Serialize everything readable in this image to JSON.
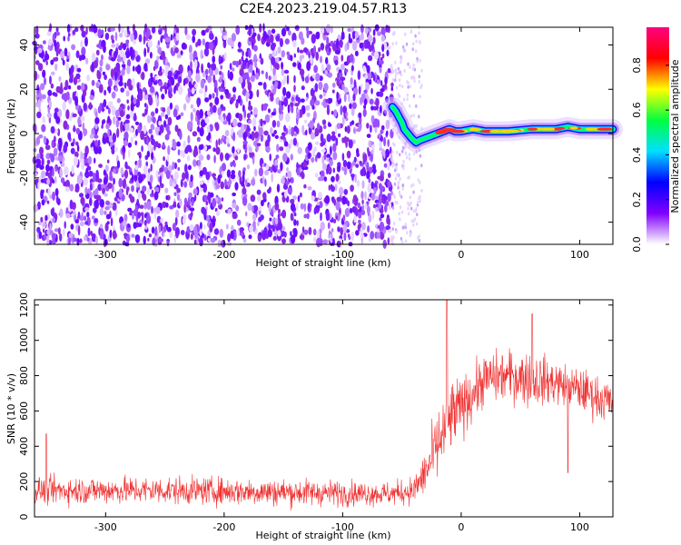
{
  "title": "C2E4.2023.219.04.57.R13",
  "chart_data": [
    {
      "type": "heatmap",
      "ylabel": "Frequency (Hz)",
      "xlabel": "Height of straight line (km)",
      "xlim": [
        -360,
        128
      ],
      "ylim": [
        -50,
        48
      ],
      "x_ticks": [
        -300,
        -200,
        -100,
        0,
        100
      ],
      "y_ticks": [
        -40,
        -20,
        0,
        20,
        40
      ],
      "colorbar": {
        "label": "Normalized spectral amplitude",
        "range": [
          0,
          0.97
        ],
        "ticks": [
          0.0,
          0.2,
          0.4,
          0.6,
          0.8
        ],
        "colormap": [
          "#ffffff",
          "#8000ff",
          "#0000ff",
          "#00e0ff",
          "#00ff40",
          "#ffff00",
          "#ff0000",
          "#ff0080"
        ]
      },
      "noise_region_x": [
        -360,
        -58
      ],
      "sparse_region_x": [
        -58,
        -33
      ],
      "signal_trace": {
        "x": [
          -58,
          -55,
          -52,
          -50,
          -48,
          -45,
          -42,
          -40,
          -38,
          -35,
          -30,
          -25,
          -20,
          -15,
          -10,
          -5,
          0,
          10,
          20,
          40,
          60,
          80,
          90,
          100,
          110,
          128
        ],
        "y": [
          12,
          10,
          7,
          5,
          2,
          0,
          -2,
          -3,
          -4,
          -3,
          -2,
          -1,
          0,
          1,
          2,
          1,
          1,
          2,
          1,
          1,
          2,
          2,
          3,
          2,
          2,
          2
        ]
      }
    },
    {
      "type": "line",
      "ylabel": "SNR (10 * v/v)",
      "xlabel": "Height of straight line (km)",
      "xlim": [
        -360,
        128
      ],
      "ylim": [
        0,
        1230
      ],
      "x_ticks": [
        -300,
        -200,
        -100,
        0,
        100
      ],
      "y_ticks": [
        0,
        200,
        400,
        600,
        800,
        1000,
        1200
      ],
      "color": "#f03232",
      "envelope": {
        "x": [
          -360,
          -250,
          -150,
          -60,
          -40,
          -30,
          -20,
          -10,
          0,
          20,
          40,
          60,
          80,
          100,
          128
        ],
        "mean": [
          150,
          150,
          140,
          130,
          150,
          250,
          400,
          550,
          620,
          780,
          800,
          780,
          760,
          720,
          640
        ],
        "spread": [
          70,
          70,
          70,
          60,
          70,
          120,
          180,
          200,
          150,
          130,
          130,
          140,
          110,
          110,
          110
        ]
      },
      "peaks": [
        {
          "x": -12,
          "y": 1230
        },
        {
          "x": 60,
          "y": 1150
        },
        {
          "x": -350,
          "y": 470
        },
        {
          "x": 90,
          "y": 250
        }
      ]
    }
  ]
}
